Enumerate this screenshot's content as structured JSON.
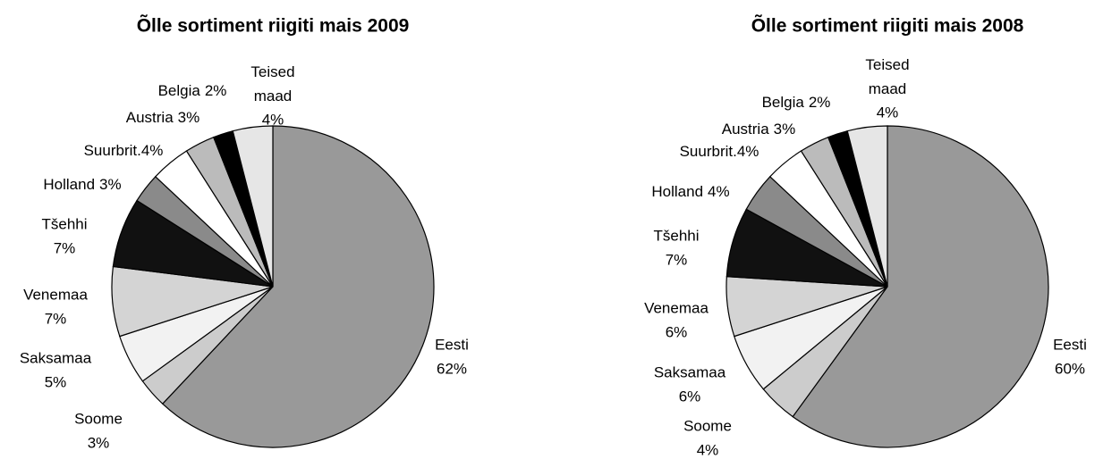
{
  "chart_data": [
    {
      "type": "pie",
      "title": "Õlle sortiment riigiti mais 2009",
      "categories": [
        "Eesti",
        "Soome",
        "Saksamaa",
        "Venemaa",
        "Tšehhi",
        "Holland",
        "Suurbrit.",
        "Austria",
        "Belgia",
        "Teised maad"
      ],
      "values": [
        62,
        3,
        5,
        7,
        7,
        3,
        4,
        3,
        2,
        4
      ],
      "value_labels": [
        "62%",
        "3%",
        "5%",
        "7%",
        "7%",
        "3%",
        "4%",
        "3%",
        "2%",
        "4%"
      ],
      "colors": [
        "#999999",
        "#cccccc",
        "#f2f2f2",
        "#d4d4d4",
        "#111111",
        "#8a8a8a",
        "#ffffff",
        "#bbbbbb",
        "#000000",
        "#e6e6e6"
      ]
    },
    {
      "type": "pie",
      "title": "Õlle sortiment riigiti mais 2008",
      "categories": [
        "Eesti",
        "Soome",
        "Saksamaa",
        "Venemaa",
        "Tšehhi",
        "Holland",
        "Suurbrit.",
        "Austria",
        "Belgia",
        "Teised maad"
      ],
      "values": [
        60,
        4,
        6,
        6,
        7,
        4,
        4,
        3,
        2,
        4
      ],
      "value_labels": [
        "60%",
        "4%",
        "6%",
        "6%",
        "7%",
        "4%",
        "4%",
        "3%",
        "2%",
        "4%"
      ],
      "colors": [
        "#999999",
        "#cccccc",
        "#f2f2f2",
        "#d4d4d4",
        "#111111",
        "#8a8a8a",
        "#ffffff",
        "#bbbbbb",
        "#000000",
        "#e6e6e6"
      ]
    }
  ]
}
